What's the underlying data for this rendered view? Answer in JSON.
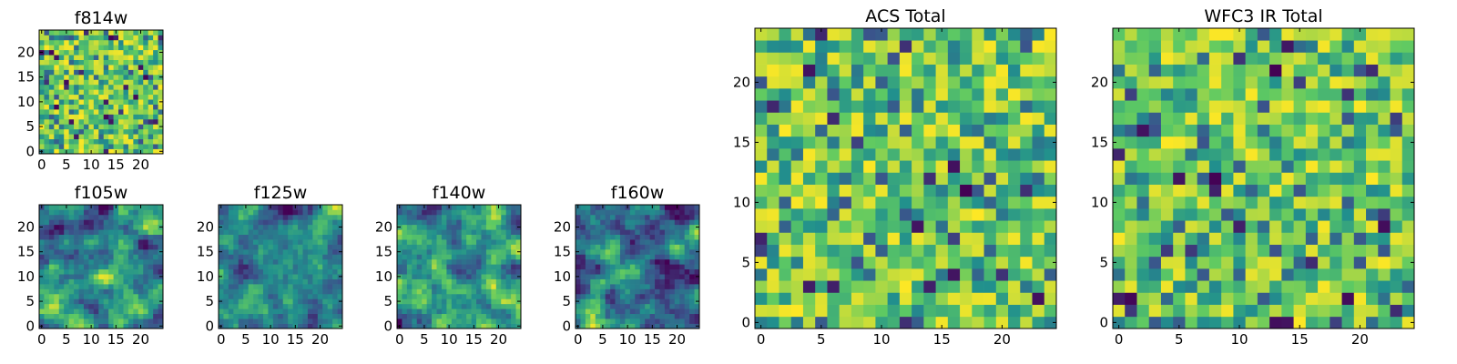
{
  "figure": {
    "background": "#ffffff"
  },
  "colormap": {
    "name": "viridis",
    "stops": [
      "#440154",
      "#3b528b",
      "#21908d",
      "#5dc963",
      "#fde725"
    ]
  },
  "chart_data": [
    {
      "type": "heatmap",
      "title": "f814w",
      "grid_size": [
        25,
        25
      ],
      "xlim": [
        -0.5,
        24.5
      ],
      "ylim": [
        -0.5,
        24.5
      ],
      "xticks": [
        0,
        5,
        10,
        15,
        20
      ],
      "yticks": [
        0,
        5,
        10,
        15,
        20
      ],
      "grid": false,
      "style": "fine high-contrast noise, mostly green-yellow, scattered dark purple/blue pixels",
      "seed": 11,
      "values": []
    },
    {
      "type": "heatmap",
      "title": "f105w",
      "grid_size": [
        25,
        25
      ],
      "xlim": [
        -0.5,
        24.5
      ],
      "ylim": [
        -0.5,
        24.5
      ],
      "xticks": [
        0,
        5,
        10,
        15,
        20
      ],
      "yticks": [
        0,
        5,
        10,
        15,
        20
      ],
      "grid": false,
      "style": "smooth blobby noise, green-yellow with blue patches, dark spots upper right",
      "seed": 23,
      "values": []
    },
    {
      "type": "heatmap",
      "title": "f125w",
      "grid_size": [
        25,
        25
      ],
      "xlim": [
        -0.5,
        24.5
      ],
      "ylim": [
        -0.5,
        24.5
      ],
      "xticks": [
        0,
        5,
        10,
        15,
        20
      ],
      "yticks": [
        0,
        5,
        10,
        15,
        20
      ],
      "grid": false,
      "style": "smooth blobby noise, green-yellow with blue patches",
      "seed": 37,
      "values": []
    },
    {
      "type": "heatmap",
      "title": "f140w",
      "grid_size": [
        25,
        25
      ],
      "xlim": [
        -0.5,
        24.5
      ],
      "ylim": [
        -0.5,
        24.5
      ],
      "xticks": [
        0,
        5,
        10,
        15,
        20
      ],
      "yticks": [
        0,
        5,
        10,
        15,
        20
      ],
      "grid": false,
      "style": "smooth blobby noise, brighter yellow regions, dark spot lower left",
      "seed": 41,
      "values": []
    },
    {
      "type": "heatmap",
      "title": "f160w",
      "grid_size": [
        25,
        25
      ],
      "xlim": [
        -0.5,
        24.5
      ],
      "ylim": [
        -0.5,
        24.5
      ],
      "xticks": [
        0,
        5,
        10,
        15,
        20
      ],
      "yticks": [
        0,
        5,
        10,
        15,
        20
      ],
      "grid": false,
      "style": "smooth blobby noise, yellow left edge, dark spots right",
      "seed": 53,
      "values": []
    },
    {
      "type": "heatmap",
      "title": "ACS Total",
      "grid_size": [
        25,
        25
      ],
      "xlim": [
        -0.5,
        24.5
      ],
      "ylim": [
        -0.5,
        24.5
      ],
      "xticks": [
        0,
        5,
        10,
        15,
        20
      ],
      "yticks": [
        0,
        5,
        10,
        15,
        20
      ],
      "grid": false,
      "style": "blocky pixel noise, mostly green-yellow, a few dark purple cells",
      "seed": 67,
      "values": []
    },
    {
      "type": "heatmap",
      "title": "WFC3 IR Total",
      "grid_size": [
        25,
        25
      ],
      "xlim": [
        -0.5,
        24.5
      ],
      "ylim": [
        -0.5,
        24.5
      ],
      "xticks": [
        0,
        5,
        10,
        15,
        20
      ],
      "yticks": [
        0,
        5,
        10,
        15,
        20
      ],
      "grid": false,
      "style": "blocky pixel noise, mostly green with blue and yellow cells",
      "seed": 79,
      "values": []
    }
  ]
}
